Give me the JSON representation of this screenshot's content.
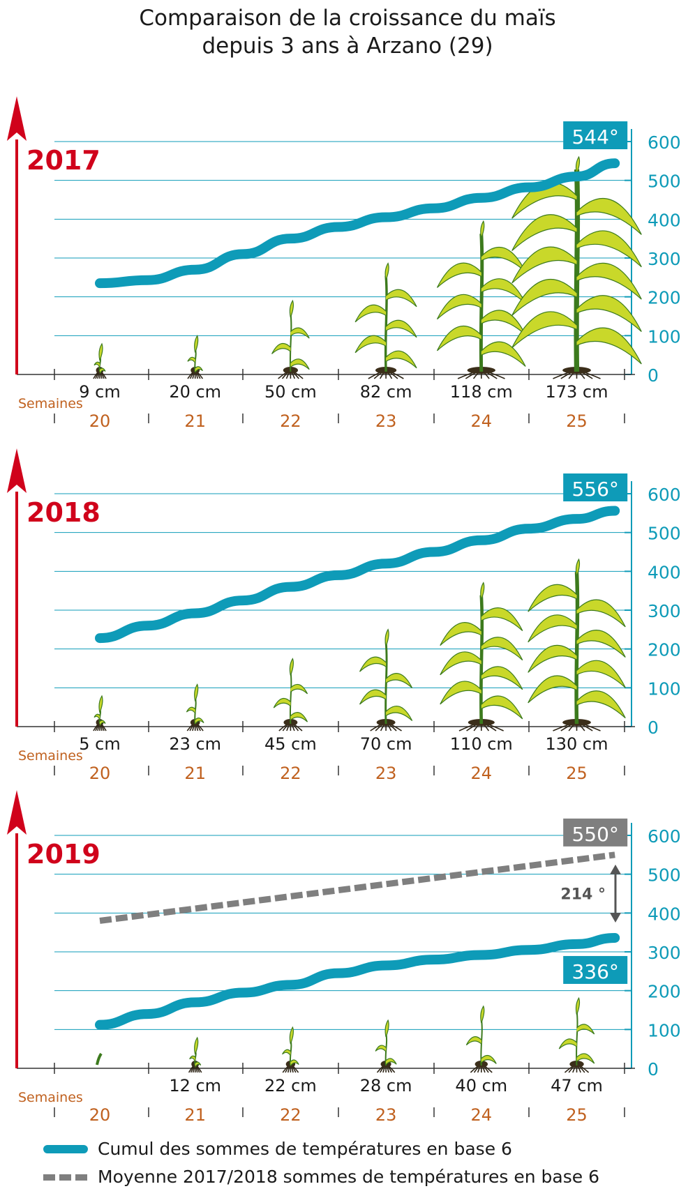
{
  "title": {
    "line1": "Comparaison de la croissance du maïs",
    "line2": "depuis 3 ans à Arzano (29)"
  },
  "colors": {
    "teal": "#0e9bb8",
    "red": "#d0021b",
    "orange": "#c0611f",
    "gray": "#7f7f7f",
    "plant_light": "#c9d82a",
    "plant_dark": "#3c7a1d"
  },
  "chart_data": [
    {
      "type": "line",
      "year": "2017",
      "title": "2017",
      "xlabel": "Semaines",
      "ylabel": "",
      "ylim": [
        0,
        600
      ],
      "y_ticks": [
        "0",
        "100",
        "200",
        "300",
        "400",
        "500",
        "600"
      ],
      "weeks": [
        "20",
        "21",
        "22",
        "23",
        "24",
        "25"
      ],
      "plant_heights_cm": [
        9,
        20,
        50,
        82,
        118,
        173
      ],
      "plant_labels": [
        "9 cm",
        "20 cm",
        "50 cm",
        "82 cm",
        "118 cm",
        "173 cm"
      ],
      "series": [
        {
          "name": "Cumul des sommes de températures en base 6",
          "style": "solid",
          "x": [
            20.0,
            20.5,
            21.0,
            21.5,
            22.0,
            22.5,
            23.0,
            23.5,
            24.0,
            24.5,
            25.0,
            25.4
          ],
          "values": [
            235,
            243,
            270,
            310,
            350,
            380,
            405,
            428,
            455,
            482,
            510,
            544
          ]
        }
      ],
      "end_label": "544°"
    },
    {
      "type": "line",
      "year": "2018",
      "title": "2018",
      "xlabel": "Semaines",
      "ylabel": "",
      "ylim": [
        0,
        600
      ],
      "y_ticks": [
        "0",
        "100",
        "200",
        "300",
        "400",
        "500",
        "600"
      ],
      "weeks": [
        "20",
        "21",
        "22",
        "23",
        "24",
        "25"
      ],
      "plant_heights_cm": [
        5,
        23,
        45,
        70,
        110,
        130
      ],
      "plant_labels": [
        "5 cm",
        "23 cm",
        "45 cm",
        "70 cm",
        "110 cm",
        "130 cm"
      ],
      "series": [
        {
          "name": "Cumul des sommes de températures en base 6",
          "style": "solid",
          "x": [
            20.0,
            20.5,
            21.0,
            21.5,
            22.0,
            22.5,
            23.0,
            23.5,
            24.0,
            24.5,
            25.0,
            25.4
          ],
          "values": [
            228,
            260,
            292,
            325,
            360,
            390,
            420,
            450,
            480,
            510,
            535,
            556
          ]
        }
      ],
      "end_label": "556°"
    },
    {
      "type": "line",
      "year": "2019",
      "title": "2019",
      "xlabel": "Semaines",
      "ylabel": "",
      "ylim": [
        0,
        600
      ],
      "y_ticks": [
        "0",
        "100",
        "200",
        "300",
        "400",
        "500",
        "600"
      ],
      "weeks": [
        "20",
        "21",
        "22",
        "23",
        "24",
        "25"
      ],
      "plant_heights_cm": [
        0,
        12,
        22,
        28,
        40,
        47
      ],
      "plant_labels": [
        "",
        "12 cm",
        "22 cm",
        "28 cm",
        "40 cm",
        "47 cm"
      ],
      "series": [
        {
          "name": "Cumul des sommes de températures en base 6",
          "style": "solid",
          "x": [
            20.0,
            20.5,
            21.0,
            21.5,
            22.0,
            22.5,
            23.0,
            23.5,
            24.0,
            24.5,
            25.0,
            25.4
          ],
          "values": [
            112,
            140,
            170,
            195,
            215,
            245,
            265,
            280,
            292,
            305,
            320,
            336
          ]
        },
        {
          "name": "Moyenne 2017/2018 sommes de températures en base 6",
          "style": "dashed",
          "x": [
            20.0,
            25.4
          ],
          "values": [
            380,
            550
          ]
        }
      ],
      "end_label": "336°",
      "avg_end_label": "550°",
      "gap_label": "214 °"
    }
  ],
  "legend": [
    {
      "label": "Cumul des sommes de températures en base 6",
      "style": "solid"
    },
    {
      "label": "Moyenne 2017/2018 sommes de températures en base 6",
      "style": "dashed"
    }
  ]
}
